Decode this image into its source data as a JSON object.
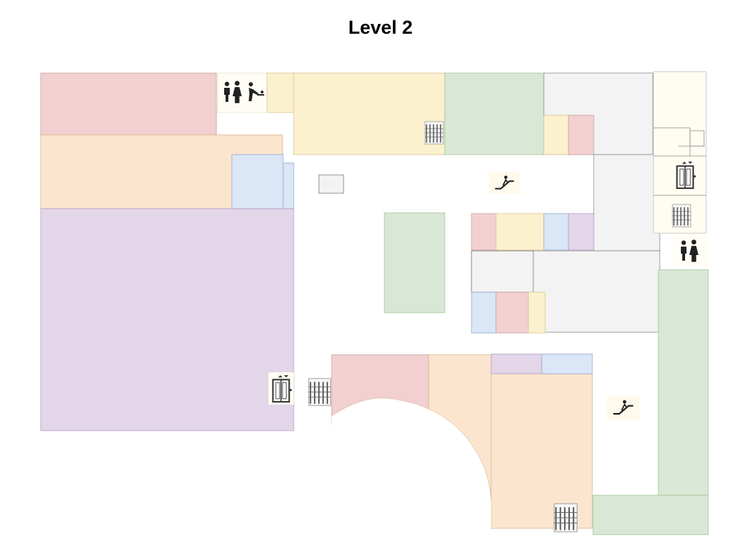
{
  "title": "Level 2",
  "colors": {
    "red": "#f2d0d0",
    "orange": "#fbe5cf",
    "yellow": "#fcf1cf",
    "green": "#d9e8d6",
    "blue": "#dbe6f6",
    "purple": "#e2d6e8",
    "gray": "#f3f3f3",
    "cream": "#fffcf2",
    "white": "#ffffff"
  },
  "legend_of_icons": [
    "restroom-icon",
    "baby-changing-icon",
    "elevator-icon",
    "escalator-icon",
    "escalator-sign-icon"
  ]
}
